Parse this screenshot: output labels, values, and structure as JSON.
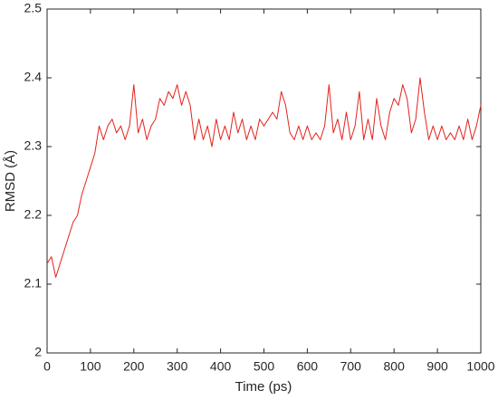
{
  "chart_data": {
    "type": "line",
    "xlabel": "Time (ps)",
    "ylabel": "RMSD (Å)",
    "x": [
      0,
      10,
      20,
      30,
      40,
      50,
      60,
      70,
      80,
      90,
      100,
      110,
      120,
      130,
      140,
      150,
      160,
      170,
      180,
      190,
      200,
      210,
      220,
      230,
      240,
      250,
      260,
      270,
      280,
      290,
      300,
      310,
      320,
      330,
      340,
      350,
      360,
      370,
      380,
      390,
      400,
      410,
      420,
      430,
      440,
      450,
      460,
      470,
      480,
      490,
      500,
      510,
      520,
      530,
      540,
      550,
      560,
      570,
      580,
      590,
      600,
      610,
      620,
      630,
      640,
      650,
      660,
      670,
      680,
      690,
      700,
      710,
      720,
      730,
      740,
      750,
      760,
      770,
      780,
      790,
      800,
      810,
      820,
      830,
      840,
      850,
      860,
      870,
      880,
      890,
      900,
      910,
      920,
      930,
      940,
      950,
      960,
      970,
      980,
      990,
      1000
    ],
    "series": [
      {
        "color": "#e3231c",
        "values": [
          2.13,
          2.14,
          2.11,
          2.13,
          2.15,
          2.17,
          2.19,
          2.2,
          2.23,
          2.25,
          2.27,
          2.29,
          2.33,
          2.31,
          2.33,
          2.34,
          2.32,
          2.33,
          2.31,
          2.33,
          2.39,
          2.32,
          2.34,
          2.31,
          2.33,
          2.34,
          2.37,
          2.36,
          2.38,
          2.37,
          2.39,
          2.36,
          2.38,
          2.36,
          2.31,
          2.34,
          2.31,
          2.33,
          2.3,
          2.34,
          2.31,
          2.33,
          2.31,
          2.35,
          2.32,
          2.34,
          2.31,
          2.33,
          2.31,
          2.34,
          2.33,
          2.34,
          2.35,
          2.34,
          2.38,
          2.36,
          2.32,
          2.31,
          2.33,
          2.31,
          2.33,
          2.31,
          2.32,
          2.31,
          2.33,
          2.39,
          2.32,
          2.34,
          2.31,
          2.35,
          2.31,
          2.33,
          2.38,
          2.31,
          2.34,
          2.31,
          2.37,
          2.33,
          2.31,
          2.35,
          2.37,
          2.36,
          2.39,
          2.37,
          2.32,
          2.34,
          2.4,
          2.35,
          2.31,
          2.33,
          2.31,
          2.33,
          2.31,
          2.32,
          2.31,
          2.33,
          2.31,
          2.34,
          2.31,
          2.33,
          2.36
        ]
      }
    ],
    "xlim": [
      0,
      1000
    ],
    "xticks": [
      0,
      100,
      200,
      300,
      400,
      500,
      600,
      700,
      800,
      900,
      1000
    ],
    "ylim": [
      2,
      2.5
    ],
    "yticks": [
      2,
      2.1,
      2.2,
      2.3,
      2.4,
      2.5
    ]
  }
}
